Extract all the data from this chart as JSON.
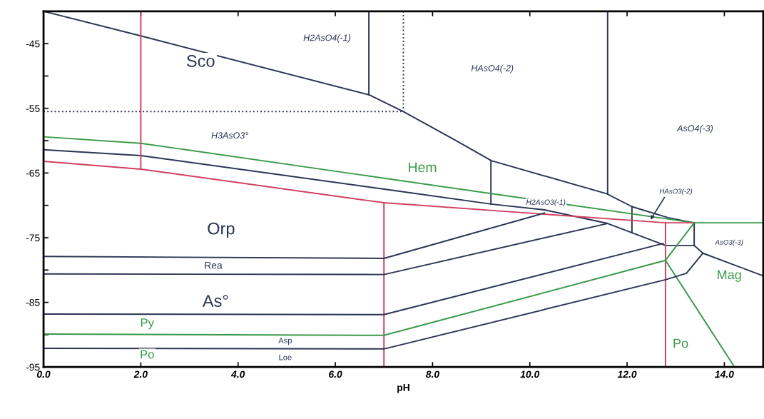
{
  "chart_data": {
    "type": "line",
    "xlabel": "pH",
    "xlim": [
      0,
      14.8
    ],
    "ylim": [
      -95,
      -40
    ],
    "xticks": [
      {
        "value": 0,
        "label": "0.0"
      },
      {
        "value": 2,
        "label": "2.0"
      },
      {
        "value": 4,
        "label": "4.0"
      },
      {
        "value": 6,
        "label": "6.0"
      },
      {
        "value": 8,
        "label": "8.0"
      },
      {
        "value": 10,
        "label": "10.0"
      },
      {
        "value": 12,
        "label": "12.0"
      },
      {
        "value": 14,
        "label": "14.0"
      }
    ],
    "yticks": [
      -45,
      {
        "value": -50,
        "label": null
      },
      -55,
      {
        "value": -60,
        "label": null
      },
      -65,
      {
        "value": -70,
        "label": null
      },
      -75,
      {
        "value": -80,
        "label": null
      },
      -85,
      {
        "value": -90,
        "label": null
      },
      -95
    ],
    "grid": false,
    "legend": false,
    "marker": "none",
    "line_style": "solid",
    "series": [
      {
        "color": "#2b3553",
        "x": [
          0,
          2,
          6.69,
          7.4,
          8.46,
          9.21,
          11.58,
          12.1,
          12.84,
          13.38
        ],
        "values": [
          -40,
          -43.8,
          -52.9,
          -55.5,
          -59.9,
          -63.1,
          -68.2,
          -70.2,
          -71.9,
          -72.7
        ]
      },
      {
        "color": "#2b3553",
        "x": [
          6.69,
          6.69
        ],
        "values": [
          -40,
          -52.9
        ]
      },
      {
        "color": "#2b3553",
        "x": [
          11.6,
          11.6
        ],
        "values": [
          -40,
          -68.2
        ]
      },
      {
        "color": "#2b3553",
        "x": [
          9.2,
          9.2
        ],
        "values": [
          -63.1,
          -69.8
        ]
      },
      {
        "color": "#2b3553",
        "x": [
          12.1,
          12.1
        ],
        "values": [
          -70.2,
          -74.2
        ]
      },
      {
        "color": "#2b3553",
        "line_style": "dotted",
        "x": [
          7.4,
          7.4
        ],
        "values": [
          -40,
          -55.5
        ]
      },
      {
        "color": "#2b3553",
        "line_style": "dotted",
        "x": [
          0,
          7.4
        ],
        "values": [
          -55.5,
          -55.5
        ]
      },
      {
        "color": "#3a9a4a",
        "x": [
          0,
          2,
          13.38,
          14.8
        ],
        "values": [
          -59.4,
          -60.4,
          -72.7,
          -72.7
        ]
      },
      {
        "color": "#2b3553",
        "x": [
          0,
          2,
          7.3,
          9.2,
          10.3,
          11.6,
          12.79,
          13.38
        ],
        "values": [
          -61.4,
          -62.3,
          -67.8,
          -69.8,
          -70.7,
          -72.8,
          -76.2,
          -76.2
        ]
      },
      {
        "color": "#2b3553",
        "x": [
          13.38,
          13.38
        ],
        "values": [
          -72.7,
          -76.2
        ]
      },
      {
        "color": "#2b3553",
        "x": [
          13.38,
          13.56,
          14.8
        ],
        "values": [
          -76.2,
          -77.4,
          -80.9
        ]
      },
      {
        "color": "#d0405e",
        "x": [
          0,
          2,
          7.0,
          12.79,
          13.38
        ],
        "values": [
          -63.2,
          -64.4,
          -69.6,
          -72.7,
          -72.7
        ]
      },
      {
        "color": "#d0405e",
        "x": [
          2,
          2
        ],
        "values": [
          -40,
          -64.4
        ]
      },
      {
        "color": "#d0405e",
        "x": [
          7.0,
          7.0
        ],
        "values": [
          -69.6,
          -95
        ]
      },
      {
        "color": "#d0405e",
        "x": [
          12.79,
          12.79
        ],
        "values": [
          -72.7,
          -95
        ]
      },
      {
        "color": "#2b3553",
        "x": [
          0,
          7.0,
          10.3
        ],
        "values": [
          -77.9,
          -78.2,
          -71.2
        ]
      },
      {
        "color": "#2b3553",
        "x": [
          0,
          7.0,
          11.6
        ],
        "values": [
          -80.6,
          -80.7,
          -72.8
        ]
      },
      {
        "color": "#2b3553",
        "x": [
          0,
          7.0,
          12.74
        ],
        "values": [
          -86.8,
          -86.9,
          -75.9
        ]
      },
      {
        "color": "#3a9a4a",
        "x": [
          0,
          7.0,
          12.79,
          13.38
        ],
        "values": [
          -89.9,
          -90.1,
          -78.5,
          -72.7
        ]
      },
      {
        "color": "#3a9a4a",
        "x": [
          12.79,
          14.21
        ],
        "values": [
          -78.5,
          -95
        ]
      },
      {
        "color": "#2b3553",
        "x": [
          0,
          7.0,
          12.79,
          13.22,
          13.56
        ],
        "values": [
          -92.1,
          -92.2,
          -81.5,
          -80.5,
          -77.4
        ]
      }
    ],
    "annotations": [
      "H2AsO4(-1)",
      "Sco",
      "HAsO4(-2)",
      "AsO4(-3)",
      "H3AsO3°",
      "Hem",
      "H2AsO3(-1)",
      {
        "text": "HAsO3(-2)",
        "x": 12.46,
        "y": -72.5
      },
      "AsO3(-3)",
      "Mag",
      "Po",
      "Orp",
      "Rea",
      "As°",
      "Py",
      "Po",
      "Asp",
      "Loe"
    ]
  }
}
